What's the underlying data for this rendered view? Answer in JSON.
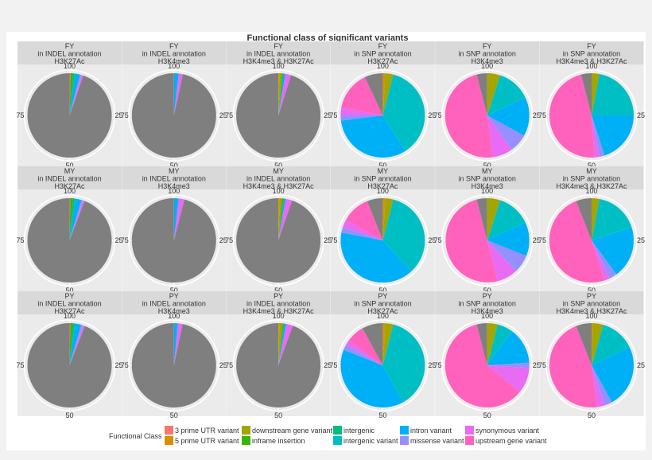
{
  "chart_data": {
    "type": "pie",
    "title": "Functional class of significant variants",
    "angle_ticks": [
      "100",
      "25",
      "50",
      "75"
    ],
    "legend": {
      "title": "Functional Class",
      "position": "bottom",
      "entries": [
        {
          "label": "3 prime UTR variant",
          "color": "#F8766D"
        },
        {
          "label": "5 prime UTR variant",
          "color": "#D89000"
        },
        {
          "label": "downstream gene variant",
          "color": "#A3A500"
        },
        {
          "label": "inframe insertion",
          "color": "#39B600"
        },
        {
          "label": "intergenic",
          "color": "#00BF7D"
        },
        {
          "label": "intergenic variant",
          "color": "#00BFC4"
        },
        {
          "label": "intron variant",
          "color": "#00B0F6"
        },
        {
          "label": "missense variant",
          "color": "#9590FF"
        },
        {
          "label": "synonymous variant",
          "color": "#E76BF3"
        },
        {
          "label": "upstream gene variant",
          "color": "#FF62BC"
        }
      ]
    },
    "other_color": "#7f7f7f",
    "panels": [
      {
        "strip": [
          "FY",
          "in INDEL annotation",
          "H3K27Ac"
        ],
        "slices": [
          {
            "c": "3 prime UTR variant",
            "v": 0.4
          },
          {
            "c": "inframe insertion",
            "v": 1.0
          },
          {
            "c": "intergenic",
            "v": 0.6
          },
          {
            "c": "intron variant",
            "v": 2.0
          },
          {
            "c": "missense variant",
            "v": 0.5
          },
          {
            "c": "synonymous variant",
            "v": 0.8
          },
          {
            "c": "other",
            "v": 94.7
          }
        ]
      },
      {
        "strip": [
          "FY",
          "in INDEL annotation",
          "H3K4me3"
        ],
        "slices": [
          {
            "c": "intron variant",
            "v": 1.8
          },
          {
            "c": "synonymous variant",
            "v": 1.6
          },
          {
            "c": "other",
            "v": 96.6
          }
        ]
      },
      {
        "strip": [
          "FY",
          "in INDEL annotation",
          "H3K4me3 & H3K27Ac"
        ],
        "slices": [
          {
            "c": "5 prime UTR variant",
            "v": 0.4
          },
          {
            "c": "downstream gene variant",
            "v": 0.9
          },
          {
            "c": "inframe insertion",
            "v": 0.5
          },
          {
            "c": "intron variant",
            "v": 0.9
          },
          {
            "c": "synonymous variant",
            "v": 2.2
          },
          {
            "c": "other",
            "v": 95.1
          }
        ]
      },
      {
        "strip": [
          "FY",
          "in SNP annotation",
          "H3K27Ac"
        ],
        "slices": [
          {
            "c": "5 prime UTR variant",
            "v": 1.0
          },
          {
            "c": "downstream gene variant",
            "v": 3.0
          },
          {
            "c": "intergenic variant",
            "v": 37.0
          },
          {
            "c": "intron variant",
            "v": 32.0
          },
          {
            "c": "missense variant",
            "v": 2.0
          },
          {
            "c": "synonymous variant",
            "v": 3.0
          },
          {
            "c": "upstream gene variant",
            "v": 15.0
          },
          {
            "c": "other",
            "v": 7.0
          }
        ]
      },
      {
        "strip": [
          "FY",
          "in SNP annotation",
          "H3K4me3"
        ],
        "slices": [
          {
            "c": "downstream gene variant",
            "v": 5.0
          },
          {
            "c": "intergenic variant",
            "v": 13.0
          },
          {
            "c": "intron variant",
            "v": 15.0
          },
          {
            "c": "missense variant",
            "v": 7.0
          },
          {
            "c": "synonymous variant",
            "v": 8.0
          },
          {
            "c": "upstream gene variant",
            "v": 48.0
          },
          {
            "c": "other",
            "v": 4.0
          }
        ]
      },
      {
        "strip": [
          "FY",
          "in SNP annotation",
          "H3K4me3 & H3K27Ac"
        ],
        "slices": [
          {
            "c": "downstream gene variant",
            "v": 3.0
          },
          {
            "c": "intergenic variant",
            "v": 22.0
          },
          {
            "c": "intron variant",
            "v": 20.0
          },
          {
            "c": "missense variant",
            "v": 2.0
          },
          {
            "c": "synonymous variant",
            "v": 2.0
          },
          {
            "c": "upstream gene variant",
            "v": 47.0
          },
          {
            "c": "other",
            "v": 4.0
          }
        ]
      },
      {
        "strip": [
          "MY",
          "in INDEL annotation",
          "H3K27Ac"
        ],
        "slices": [
          {
            "c": "3 prime UTR variant",
            "v": 0.3
          },
          {
            "c": "inframe insertion",
            "v": 1.0
          },
          {
            "c": "intergenic",
            "v": 0.8
          },
          {
            "c": "intron variant",
            "v": 2.5
          },
          {
            "c": "missense variant",
            "v": 0.5
          },
          {
            "c": "synonymous variant",
            "v": 0.7
          },
          {
            "c": "other",
            "v": 94.2
          }
        ]
      },
      {
        "strip": [
          "MY",
          "in INDEL annotation",
          "H3K4me3"
        ],
        "slices": [
          {
            "c": "intron variant",
            "v": 1.8
          },
          {
            "c": "synonymous variant",
            "v": 2.2
          },
          {
            "c": "other",
            "v": 96.0
          }
        ]
      },
      {
        "strip": [
          "MY",
          "in INDEL annotation",
          "H3K4me3 & H3K27Ac"
        ],
        "slices": [
          {
            "c": "5 prime UTR variant",
            "v": 0.5
          },
          {
            "c": "downstream gene variant",
            "v": 0.9
          },
          {
            "c": "inframe insertion",
            "v": 0.6
          },
          {
            "c": "intron variant",
            "v": 0.8
          },
          {
            "c": "synonymous variant",
            "v": 2.5
          },
          {
            "c": "other",
            "v": 94.7
          }
        ]
      },
      {
        "strip": [
          "MY",
          "in SNP annotation",
          "H3K27Ac"
        ],
        "slices": [
          {
            "c": "5 prime UTR variant",
            "v": 1.0
          },
          {
            "c": "downstream gene variant",
            "v": 3.0
          },
          {
            "c": "intergenic variant",
            "v": 34.0
          },
          {
            "c": "intron variant",
            "v": 40.0
          },
          {
            "c": "missense variant",
            "v": 2.0
          },
          {
            "c": "synonymous variant",
            "v": 3.0
          },
          {
            "c": "upstream gene variant",
            "v": 11.0
          },
          {
            "c": "other",
            "v": 6.0
          }
        ]
      },
      {
        "strip": [
          "MY",
          "in SNP annotation",
          "H3K4me3"
        ],
        "slices": [
          {
            "c": "downstream gene variant",
            "v": 5.0
          },
          {
            "c": "intergenic variant",
            "v": 13.0
          },
          {
            "c": "intron variant",
            "v": 13.0
          },
          {
            "c": "missense variant",
            "v": 7.0
          },
          {
            "c": "synonymous variant",
            "v": 8.0
          },
          {
            "c": "upstream gene variant",
            "v": 50.0
          },
          {
            "c": "other",
            "v": 4.0
          }
        ]
      },
      {
        "strip": [
          "MY",
          "in SNP annotation",
          "H3K4me3 & H3K27Ac"
        ],
        "slices": [
          {
            "c": "downstream gene variant",
            "v": 3.0
          },
          {
            "c": "intergenic variant",
            "v": 17.0
          },
          {
            "c": "intron variant",
            "v": 20.0
          },
          {
            "c": "missense variant",
            "v": 3.0
          },
          {
            "c": "synonymous variant",
            "v": 2.0
          },
          {
            "c": "upstream gene variant",
            "v": 49.0
          },
          {
            "c": "other",
            "v": 6.0
          }
        ]
      },
      {
        "strip": [
          "PY",
          "in INDEL annotation",
          "H3K27Ac"
        ],
        "slices": [
          {
            "c": "3 prime UTR variant",
            "v": 0.3
          },
          {
            "c": "inframe insertion",
            "v": 1.0
          },
          {
            "c": "intergenic",
            "v": 0.7
          },
          {
            "c": "intron variant",
            "v": 2.5
          },
          {
            "c": "missense variant",
            "v": 0.6
          },
          {
            "c": "synonymous variant",
            "v": 0.8
          },
          {
            "c": "other",
            "v": 94.1
          }
        ]
      },
      {
        "strip": [
          "PY",
          "in INDEL annotation",
          "H3K4me3"
        ],
        "slices": [
          {
            "c": "intron variant",
            "v": 1.5
          },
          {
            "c": "synonymous variant",
            "v": 1.8
          },
          {
            "c": "other",
            "v": 96.7
          }
        ]
      },
      {
        "strip": [
          "PY",
          "in INDEL annotation",
          "H3K4me3 & H3K27Ac"
        ],
        "slices": [
          {
            "c": "5 prime UTR variant",
            "v": 0.4
          },
          {
            "c": "downstream gene variant",
            "v": 1.2
          },
          {
            "c": "inframe insertion",
            "v": 0.5
          },
          {
            "c": "intron variant",
            "v": 0.9
          },
          {
            "c": "synonymous variant",
            "v": 2.6
          },
          {
            "c": "other",
            "v": 94.4
          }
        ]
      },
      {
        "strip": [
          "PY",
          "in SNP annotation",
          "H3K27Ac"
        ],
        "slices": [
          {
            "c": "5 prime UTR variant",
            "v": 1.0
          },
          {
            "c": "downstream gene variant",
            "v": 3.0
          },
          {
            "c": "intergenic variant",
            "v": 38.0
          },
          {
            "c": "intron variant",
            "v": 39.0
          },
          {
            "c": "missense variant",
            "v": 2.0
          },
          {
            "c": "synonymous variant",
            "v": 2.0
          },
          {
            "c": "upstream gene variant",
            "v": 7.0
          },
          {
            "c": "other",
            "v": 8.0
          }
        ]
      },
      {
        "strip": [
          "PY",
          "in SNP annotation",
          "H3K4me3"
        ],
        "slices": [
          {
            "c": "downstream gene variant",
            "v": 4.0
          },
          {
            "c": "intergenic variant",
            "v": 6.0
          },
          {
            "c": "intron variant",
            "v": 14.0
          },
          {
            "c": "missense variant",
            "v": 2.0
          },
          {
            "c": "synonymous variant",
            "v": 10.0
          },
          {
            "c": "upstream gene variant",
            "v": 60.0
          },
          {
            "c": "other",
            "v": 4.0
          }
        ]
      },
      {
        "strip": [
          "PY",
          "in SNP annotation",
          "H3K4me3 & H3K27Ac"
        ],
        "slices": [
          {
            "c": "5 prime UTR variant",
            "v": 0.5
          },
          {
            "c": "downstream gene variant",
            "v": 4.0
          },
          {
            "c": "intergenic variant",
            "v": 13.5
          },
          {
            "c": "intron variant",
            "v": 24.0
          },
          {
            "c": "missense variant",
            "v": 3.0
          },
          {
            "c": "synonymous variant",
            "v": 3.0
          },
          {
            "c": "upstream gene variant",
            "v": 46.0
          },
          {
            "c": "other",
            "v": 6.0
          }
        ]
      }
    ]
  }
}
